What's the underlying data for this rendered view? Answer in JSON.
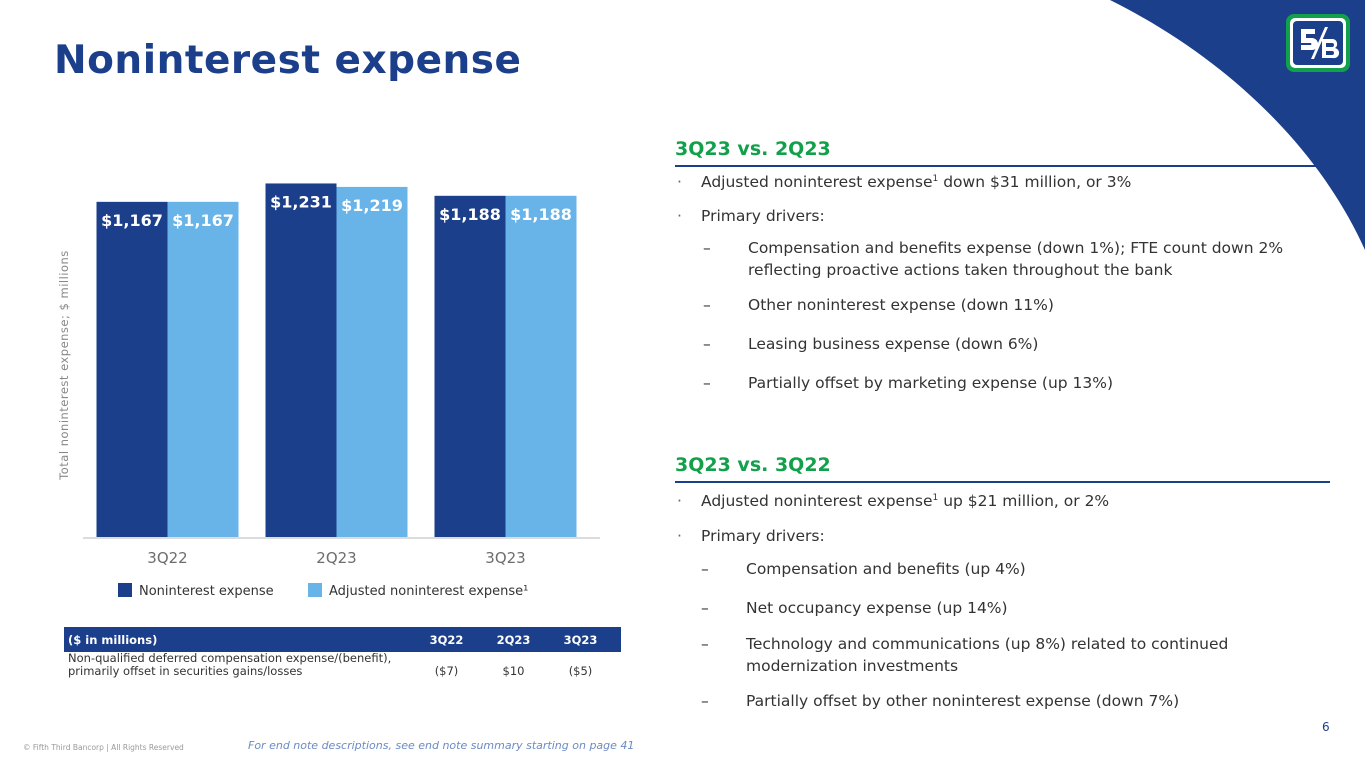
{
  "title": "Noninterest expense",
  "colors": {
    "brand": "#1c3f8c",
    "accent_light": "#68b3e8",
    "green": "#12a04b"
  },
  "chart_data": {
    "type": "bar",
    "categories": [
      "3Q22",
      "2Q23",
      "3Q23"
    ],
    "series": [
      {
        "name": "Noninterest expense",
        "values": [
          1167,
          1231,
          1188
        ],
        "labels": [
          "$1,167",
          "$1,231",
          "$1,188"
        ],
        "color": "#1c3f8c"
      },
      {
        "name": "Adjusted noninterest expense¹",
        "values": [
          1167,
          1219,
          1188
        ],
        "labels": [
          "$1,167",
          "$1,219",
          "$1,188"
        ],
        "color": "#68b3e8"
      }
    ],
    "ylabel": "Total noninterest expense; $ millions",
    "ylim": [
      0,
      1250
    ],
    "legend": "bottom"
  },
  "table": {
    "header": {
      "label": "($ in millions)",
      "cols": [
        "3Q22",
        "2Q23",
        "3Q23"
      ]
    },
    "rows": [
      {
        "label": "Non-qualified deferred compensation expense/(benefit), primarily offset in securities gains/losses",
        "values": [
          "($7)",
          "$10",
          "($5)"
        ]
      }
    ]
  },
  "sections": [
    {
      "title": "3Q23 vs. 2Q23",
      "bullets": [
        "Adjusted noninterest expense",
        "down $31 million, or 3%",
        "Primary drivers:"
      ],
      "subs": [
        "Compensation and benefits expense (down 1%); FTE count down 2% reflecting proactive actions taken throughout the bank",
        "Other noninterest expense (down 11%)",
        "Leasing business expense (down 6%)",
        "Partially offset by marketing expense (up 13%)"
      ]
    },
    {
      "title": "3Q23 vs. 3Q22",
      "bullets": [
        "Adjusted noninterest expense",
        "up $21 million, or 2%",
        "Primary drivers:"
      ],
      "subs": [
        "Compensation and benefits (up 4%)",
        "Net occupancy expense (up 14%)",
        "Technology and communications (up 8%) related to continued modernization investments",
        "Partially offset by other noninterest expense (down 7%)"
      ]
    }
  ],
  "footnote_mark": "1",
  "bullet_glyph": "·",
  "dash_glyph": "–",
  "page_number": "6",
  "copyright": "© Fifth Third Bancorp | All Rights Reserved",
  "endnote": "For end note descriptions, see end note summary starting on page 41"
}
